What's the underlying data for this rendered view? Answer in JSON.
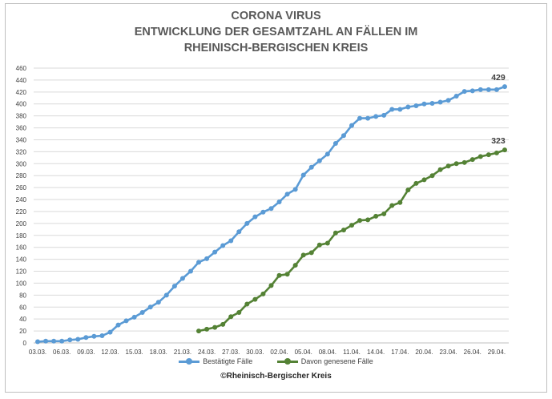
{
  "chart_data": {
    "type": "line",
    "title": [
      "CORONA VIRUS",
      "ENTWICKLUNG DER GESAMTZAHL AN FÄLLEN IM",
      "RHEINISCH-BERGISCHEN KREIS"
    ],
    "xlabel": "",
    "ylabel": "",
    "ylim": [
      0,
      460
    ],
    "yticks": [
      0,
      20,
      40,
      60,
      80,
      100,
      120,
      140,
      160,
      180,
      200,
      220,
      240,
      260,
      280,
      300,
      320,
      340,
      360,
      380,
      400,
      420,
      440,
      460
    ],
    "grid": true,
    "legend_position": "bottom",
    "x_tick_labels": [
      "03.03.",
      "06.03.",
      "09.03.",
      "12.03.",
      "15.03.",
      "18.03.",
      "21.03.",
      "24.03.",
      "27.03.",
      "30.03.",
      "02.04.",
      "05.04.",
      "08.04.",
      "11.04.",
      "14.04.",
      "17.04.",
      "20.04.",
      "23.04.",
      "26.04.",
      "29.04."
    ],
    "categories": [
      "03.03.",
      "04.03.",
      "05.03.",
      "06.03.",
      "07.03.",
      "08.03.",
      "09.03.",
      "10.03.",
      "11.03.",
      "12.03.",
      "13.03.",
      "14.03.",
      "15.03.",
      "16.03.",
      "17.03.",
      "18.03.",
      "19.03.",
      "20.03.",
      "21.03.",
      "22.03.",
      "23.03.",
      "24.03.",
      "25.03.",
      "26.03.",
      "27.03.",
      "28.03.",
      "29.03.",
      "30.03.",
      "31.03.",
      "01.04.",
      "02.04.",
      "03.04.",
      "04.04.",
      "05.04.",
      "06.04.",
      "07.04.",
      "08.04.",
      "09.04.",
      "10.04.",
      "11.04.",
      "12.04.",
      "13.04.",
      "14.04.",
      "15.04.",
      "16.04.",
      "17.04.",
      "18.04.",
      "19.04.",
      "20.04.",
      "21.04.",
      "22.04.",
      "23.04.",
      "24.04.",
      "25.04.",
      "26.04.",
      "27.04.",
      "28.04.",
      "29.04.",
      "30.04."
    ],
    "series": [
      {
        "name": "Bestätigte Fälle",
        "color": "#5b9bd5",
        "values": [
          2,
          3,
          3,
          3,
          5,
          6,
          9,
          11,
          12,
          18,
          30,
          37,
          43,
          51,
          60,
          68,
          80,
          95,
          108,
          120,
          135,
          141,
          152,
          163,
          171,
          186,
          200,
          211,
          219,
          225,
          236,
          249,
          257,
          281,
          294,
          305,
          316,
          334,
          347,
          364,
          376,
          376,
          379,
          381,
          391,
          391,
          395,
          397,
          400,
          401,
          403,
          406,
          413,
          421,
          422,
          424,
          424,
          424,
          429
        ],
        "end_label": "429"
      },
      {
        "name": "Davon genesene Fälle",
        "color": "#548235",
        "values": [
          null,
          null,
          null,
          null,
          null,
          null,
          null,
          null,
          null,
          null,
          null,
          null,
          null,
          null,
          null,
          null,
          null,
          null,
          null,
          null,
          20,
          23,
          26,
          31,
          44,
          51,
          65,
          73,
          82,
          96,
          113,
          115,
          130,
          147,
          151,
          164,
          167,
          184,
          189,
          197,
          205,
          206,
          212,
          216,
          230,
          235,
          256,
          267,
          273,
          280,
          290,
          296,
          300,
          302,
          307,
          312,
          315,
          318,
          323
        ],
        "end_label": "323"
      }
    ]
  },
  "copyright": "©Rheinisch-Bergischer Kreis"
}
